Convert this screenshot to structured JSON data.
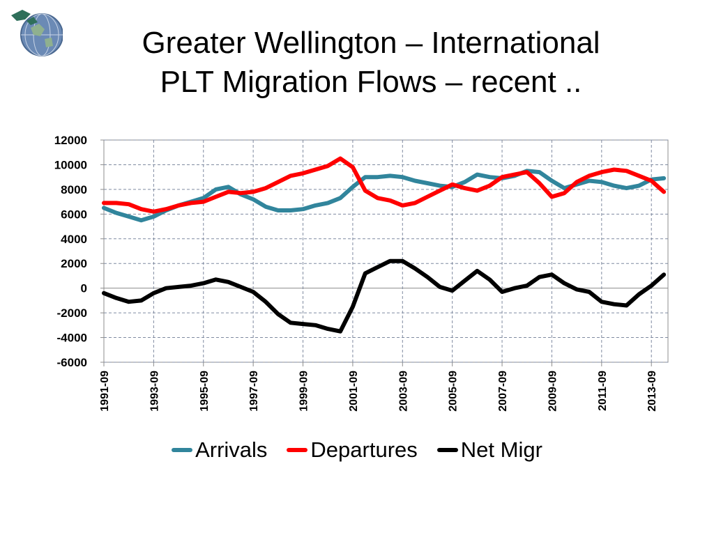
{
  "slide": {
    "title_line1": "Greater Wellington – International",
    "title_line2": "PLT Migration Flows – recent .."
  },
  "chart_data": {
    "type": "line",
    "title": "Greater Wellington – International PLT Migration Flows – recent ..",
    "xlabel": "",
    "ylabel": "",
    "x_tick_labels": [
      "1991-09",
      "1993-09",
      "1995-09",
      "1997-09",
      "1999-09",
      "2001-09",
      "2003-09",
      "2005-09",
      "2007-09",
      "2009-09",
      "2011-09",
      "2013-09"
    ],
    "x_range": [
      "1991-09",
      "2014-05"
    ],
    "ylim": [
      -6000,
      12000
    ],
    "y_ticks": [
      12000,
      10000,
      8000,
      6000,
      4000,
      2000,
      0,
      -2000,
      -4000,
      -6000
    ],
    "grid": "dashed horizontal and vertical",
    "legend_position": "bottom",
    "x": [
      "1991-09",
      "1992-03",
      "1992-09",
      "1993-03",
      "1993-09",
      "1994-03",
      "1994-09",
      "1995-03",
      "1995-09",
      "1996-03",
      "1996-09",
      "1997-03",
      "1997-09",
      "1998-03",
      "1998-09",
      "1999-03",
      "1999-09",
      "2000-03",
      "2000-09",
      "2001-03",
      "2001-09",
      "2002-03",
      "2002-09",
      "2003-03",
      "2003-09",
      "2004-03",
      "2004-09",
      "2005-03",
      "2005-09",
      "2006-03",
      "2006-09",
      "2007-03",
      "2007-09",
      "2008-03",
      "2008-09",
      "2009-03",
      "2009-09",
      "2010-03",
      "2010-09",
      "2011-03",
      "2011-09",
      "2012-03",
      "2012-09",
      "2013-03",
      "2013-09",
      "2014-03"
    ],
    "series": [
      {
        "name": "Arrivals",
        "color": "#31859c",
        "values": [
          6500,
          6100,
          5800,
          5500,
          5800,
          6300,
          6700,
          7000,
          7300,
          8000,
          8200,
          7600,
          7200,
          6600,
          6300,
          6300,
          6400,
          6700,
          6900,
          7300,
          8200,
          9000,
          9000,
          9100,
          9000,
          8700,
          8500,
          8300,
          8200,
          8600,
          9200,
          9000,
          8900,
          9100,
          9500,
          9400,
          8700,
          8100,
          8400,
          8700,
          8600,
          8300,
          8100,
          8300,
          8800,
          8900
        ]
      },
      {
        "name": "Departures",
        "color": "#ff0000",
        "values": [
          6900,
          6900,
          6800,
          6400,
          6200,
          6400,
          6700,
          6900,
          7000,
          7400,
          7800,
          7700,
          7800,
          8100,
          8600,
          9100,
          9300,
          9600,
          9900,
          10500,
          9800,
          7900,
          7300,
          7100,
          6700,
          6900,
          7400,
          7900,
          8400,
          8100,
          7900,
          8300,
          9000,
          9200,
          9400,
          8500,
          7400,
          7700,
          8600,
          9100,
          9400,
          9600,
          9500,
          9100,
          8700,
          7800
        ]
      },
      {
        "name": "Net Migr",
        "color": "#000000",
        "values": [
          -400,
          -800,
          -1100,
          -1000,
          -400,
          0,
          100,
          200,
          400,
          700,
          500,
          100,
          -300,
          -1100,
          -2100,
          -2800,
          -2900,
          -3000,
          -3300,
          -3500,
          -1500,
          1200,
          1700,
          2200,
          2200,
          1600,
          900,
          100,
          -200,
          600,
          1400,
          700,
          -300,
          0,
          200,
          900,
          1100,
          400,
          -100,
          -300,
          -1100,
          -1300,
          -1400,
          -500,
          200,
          1100
        ]
      }
    ]
  },
  "legend": {
    "items": [
      {
        "label": "Arrivals",
        "color": "#31859c"
      },
      {
        "label": "Departures",
        "color": "#ff0000"
      },
      {
        "label": "Net Migr",
        "color": "#000000"
      }
    ]
  },
  "logo": {
    "icon": "globe-icon"
  }
}
